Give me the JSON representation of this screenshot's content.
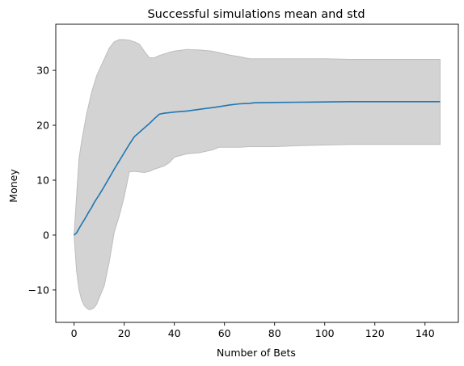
{
  "chart_data": {
    "type": "line",
    "title": "Successful simulations mean and std",
    "xlabel": "Number of Bets",
    "ylabel": "Money",
    "xlim": [
      -7.3,
      153.3
    ],
    "ylim": [
      -15.9,
      38.4
    ],
    "grid": false,
    "xticks": [
      0,
      20,
      40,
      60,
      80,
      100,
      120,
      140
    ],
    "yticks": [
      -10,
      0,
      10,
      20,
      30
    ],
    "colors": {
      "mean": "#1f77b4",
      "band": "#d3d3d3",
      "band_edge": "#bdbdbd"
    },
    "series": [
      {
        "x": [
          0,
          1,
          2,
          3,
          4,
          5,
          6,
          7,
          8,
          9,
          10,
          12,
          14,
          16,
          18,
          20,
          22,
          24,
          26,
          28,
          30,
          32,
          34,
          36,
          38,
          40,
          45,
          50,
          55,
          58,
          62,
          66,
          70,
          72,
          80,
          90,
          100,
          110,
          120,
          130,
          140,
          146
        ],
        "values": [
          0.0,
          0.4,
          1.2,
          2.0,
          2.7,
          3.5,
          4.3,
          5.0,
          5.9,
          6.6,
          7.3,
          8.8,
          10.4,
          12.0,
          13.5,
          15.0,
          16.5,
          17.9,
          18.7,
          19.5,
          20.3,
          21.2,
          22.0,
          22.2,
          22.3,
          22.4,
          22.6,
          22.9,
          23.2,
          23.4,
          23.7,
          23.9,
          24.0,
          24.1,
          24.15,
          24.2,
          24.25,
          24.3,
          24.3,
          24.3,
          24.3,
          24.3
        ]
      }
    ],
    "band": {
      "x": [
        0,
        1,
        2,
        3,
        4,
        5,
        6,
        7,
        8,
        9,
        10,
        12,
        14,
        16,
        18,
        20,
        22,
        24,
        26,
        28,
        30,
        32,
        34,
        36,
        38,
        40,
        45,
        50,
        55,
        58,
        62,
        66,
        70,
        72,
        80,
        90,
        100,
        110,
        120,
        130,
        140,
        146
      ],
      "upper": [
        0.0,
        7.0,
        14.0,
        17.0,
        19.5,
        22.0,
        24.0,
        26.0,
        27.5,
        29.0,
        30.0,
        32.0,
        34.0,
        35.2,
        35.6,
        35.6,
        35.5,
        35.2,
        34.8,
        33.5,
        32.3,
        32.3,
        32.7,
        33.0,
        33.3,
        33.5,
        33.8,
        33.7,
        33.5,
        33.2,
        32.8,
        32.5,
        32.1,
        32.1,
        32.1,
        32.1,
        32.1,
        32.0,
        32.0,
        32.0,
        32.0,
        32.0
      ],
      "lower": [
        0.0,
        -6.5,
        -10.0,
        -11.8,
        -12.8,
        -13.3,
        -13.6,
        -13.5,
        -13.2,
        -12.6,
        -11.5,
        -9.3,
        -5.0,
        0.5,
        3.5,
        7.0,
        11.5,
        11.6,
        11.5,
        11.4,
        11.6,
        12.0,
        12.3,
        12.6,
        13.2,
        14.2,
        14.8,
        15.0,
        15.5,
        16.0,
        16.0,
        16.0,
        16.1,
        16.1,
        16.1,
        16.3,
        16.4,
        16.5,
        16.5,
        16.5,
        16.5,
        16.5
      ]
    }
  }
}
